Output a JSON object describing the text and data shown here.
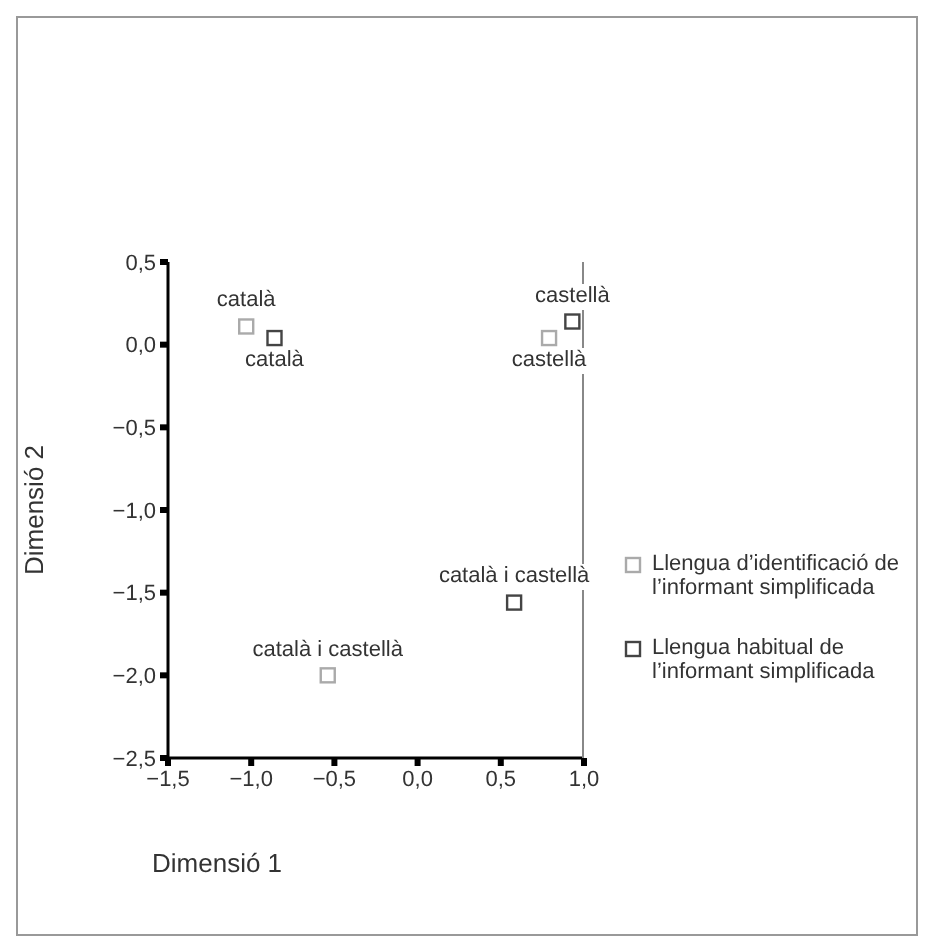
{
  "chart_data": {
    "type": "scatter",
    "xlabel": "Dimensió 1",
    "ylabel": "Dimensió 2",
    "xlim": [
      -1.5,
      1.0
    ],
    "ylim": [
      -2.5,
      0.5
    ],
    "xticks": [
      {
        "value": -1.5,
        "label": "−1,5"
      },
      {
        "value": -1.0,
        "label": "−1,0"
      },
      {
        "value": -0.5,
        "label": "−0,5"
      },
      {
        "value": 0,
        "label": "0,0"
      },
      {
        "value": 0.5,
        "label": "0,5"
      },
      {
        "value": 1.0,
        "label": "1,0"
      }
    ],
    "yticks": [
      {
        "value": -2.5,
        "label": "−2,5"
      },
      {
        "value": -2.0,
        "label": "−2,0"
      },
      {
        "value": -1.5,
        "label": "−1,5"
      },
      {
        "value": -1.0,
        "label": "−1,0"
      },
      {
        "value": -0.5,
        "label": "−0,5"
      },
      {
        "value": 0,
        "label": "0,0"
      },
      {
        "value": 0.5,
        "label": "0,5"
      }
    ],
    "marker": "square",
    "legend": "right",
    "grid": false,
    "series": [
      {
        "name": "Llengua d’identificació de l’informant simplificada",
        "color": "#aaaaaa",
        "x": [
          -1.03,
          0.79,
          -0.54
        ],
        "values": [
          0.11,
          0.04,
          -2.0
        ]
      },
      {
        "name": "Llengua habitual de l’informant simplificada",
        "color": "#444444",
        "x": [
          -0.86,
          0.93,
          0.58
        ],
        "values": [
          0.04,
          0.14,
          -1.56
        ]
      }
    ],
    "annotations": [
      {
        "text": "català",
        "x": -1.03,
        "y": 0.11
      },
      {
        "text": "castellà",
        "x": 0.79,
        "y": 0.04
      },
      {
        "text": "català i castellà",
        "x": -0.54,
        "y": -2.0
      },
      {
        "text": "català",
        "x": -0.86,
        "y": 0.04
      },
      {
        "text": "castellà",
        "x": 0.93,
        "y": 0.14
      },
      {
        "text": "català i castellà",
        "x": 0.58,
        "y": -1.56
      }
    ]
  }
}
